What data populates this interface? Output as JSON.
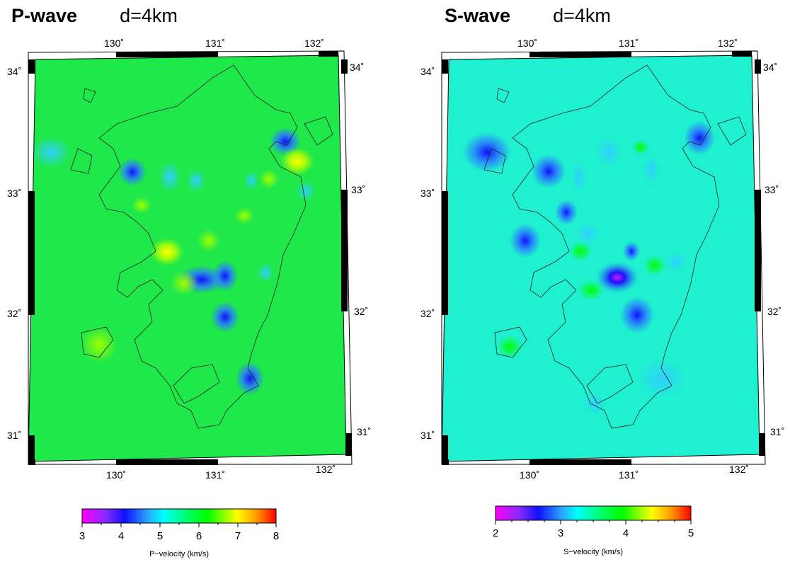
{
  "panels": [
    {
      "wave": "P-wave",
      "depth": "d=4km",
      "base_color": "#1ee84a",
      "lon_labels": [
        "130˚",
        "131˚",
        "132˚"
      ],
      "lat_labels": [
        "34˚",
        "33˚",
        "32˚",
        "31˚"
      ],
      "colorbar": {
        "ticks": [
          "3",
          "4",
          "5",
          "6",
          "7",
          "8"
        ],
        "title": "P−velocity (km/s)"
      }
    },
    {
      "wave": "S-wave",
      "depth": "d=4km",
      "base_color": "#1ff0cf",
      "lon_labels": [
        "130˚",
        "131˚",
        "132˚"
      ],
      "lat_labels": [
        "34˚",
        "33˚",
        "32˚",
        "31˚"
      ],
      "colorbar": {
        "ticks": [
          "2",
          "3",
          "4",
          "5"
        ],
        "title": "S−velocity (km/s)"
      }
    }
  ],
  "colors": {
    "scale": [
      "#ff00ff",
      "#9b30ff",
      "#1010ff",
      "#2aa8ff",
      "#00ffff",
      "#00ff7f",
      "#00ff00",
      "#9aff00",
      "#ffff00",
      "#ff9900",
      "#ff0000"
    ]
  }
}
